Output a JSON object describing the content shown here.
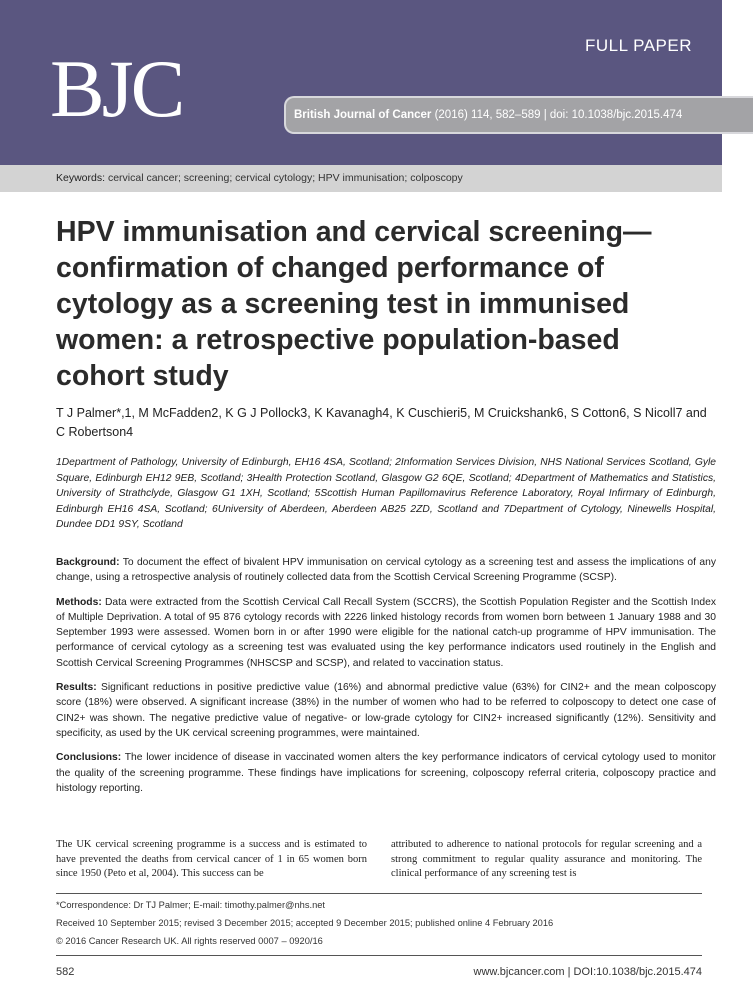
{
  "header": {
    "section": "FULL PAPER",
    "logo": "BJC",
    "journal": "British Journal of Cancer",
    "citation": " (2016) 114, 582–589 | doi: 10.1038/bjc.2015.474",
    "brand_color": "#5a5680"
  },
  "keywords": {
    "label": "Keywords:",
    "text": " cervical cancer; screening; cervical cytology; HPV immunisation; colposcopy"
  },
  "title": "HPV immunisation and cervical screening—confirmation of changed performance of cytology as a screening test in immunised women: a retrospective population-based cohort study",
  "authors": "T J Palmer*,1, M McFadden2, K G J Pollock3, K Kavanagh4, K Cuschieri5, M Cruickshank6, S Cotton6, S Nicoll7 and C Robertson4",
  "affiliations": "1Department of Pathology, University of Edinburgh, EH16 4SA, Scotland; 2Information Services Division, NHS National Services Scotland, Gyle Square, Edinburgh EH12 9EB, Scotland; 3Health Protection Scotland, Glasgow G2 6QE, Scotland; 4Department of Mathematics and Statistics, University of Strathclyde, Glasgow G1 1XH, Scotland; 5Scottish Human Papillomavirus Reference Laboratory, Royal Infirmary of Edinburgh, Edinburgh EH16 4SA, Scotland; 6University of Aberdeen, Aberdeen AB25 2ZD, Scotland and 7Department of Cytology, Ninewells Hospital, Dundee DD1 9SY, Scotland",
  "abstract": [
    {
      "label": "Background:",
      "text": " To document the effect of bivalent HPV immunisation on cervical cytology as a screening test and assess the implications of any change, using a retrospective analysis of routinely collected data from the Scottish Cervical Screening Programme (SCSP)."
    },
    {
      "label": "Methods:",
      "text": " Data were extracted from the Scottish Cervical Call Recall System (SCCRS), the Scottish Population Register and the Scottish Index of Multiple Deprivation. A total of 95 876 cytology records with 2226 linked histology records from women born between 1 January 1988 and 30 September 1993 were assessed. Women born in or after 1990 were eligible for the national catch-up programme of HPV immunisation. The performance of cervical cytology as a screening test was evaluated using the key performance indicators used routinely in the English and Scottish Cervical Screening Programmes (NHSCSP and SCSP), and related to vaccination status."
    },
    {
      "label": "Results:",
      "text": " Significant reductions in positive predictive value (16%) and abnormal predictive value (63%) for CIN2+ and the mean colposcopy score (18%) were observed. A significant increase (38%) in the number of women who had to be referred to colposcopy to detect one case of CIN2+ was shown. The negative predictive value of negative- or low-grade cytology for CIN2+ increased significantly (12%). Sensitivity and specificity, as used by the UK cervical screening programmes, were maintained."
    },
    {
      "label": "Conclusions:",
      "text": " The lower incidence of disease in vaccinated women alters the key performance indicators of cervical cytology used to monitor the quality of the screening programme. These findings have implications for screening, colposcopy referral criteria, colposcopy practice and histology reporting."
    }
  ],
  "body": [
    "The UK cervical screening programme is a success and is estimated to have prevented the deaths from cervical cancer of 1 in 65 women born since 1950 (Peto et al, 2004). This success can be",
    "attributed to adherence to national protocols for regular screening and a strong commitment to regular quality assurance and monitoring. The clinical performance of any screening test is"
  ],
  "footnotes": {
    "correspondence": "*Correspondence: Dr TJ Palmer; E-mail: timothy.palmer@nhs.net",
    "dates": "Received 10 September 2015; revised 3 December 2015; accepted 9 December 2015; published online 4 February 2016",
    "copyright": "© 2016 Cancer Research UK. All rights reserved 0007 – 0920/16"
  },
  "footer": {
    "page": "582",
    "doi": "www.bjcancer.com | DOI:10.1038/bjc.2015.474"
  }
}
